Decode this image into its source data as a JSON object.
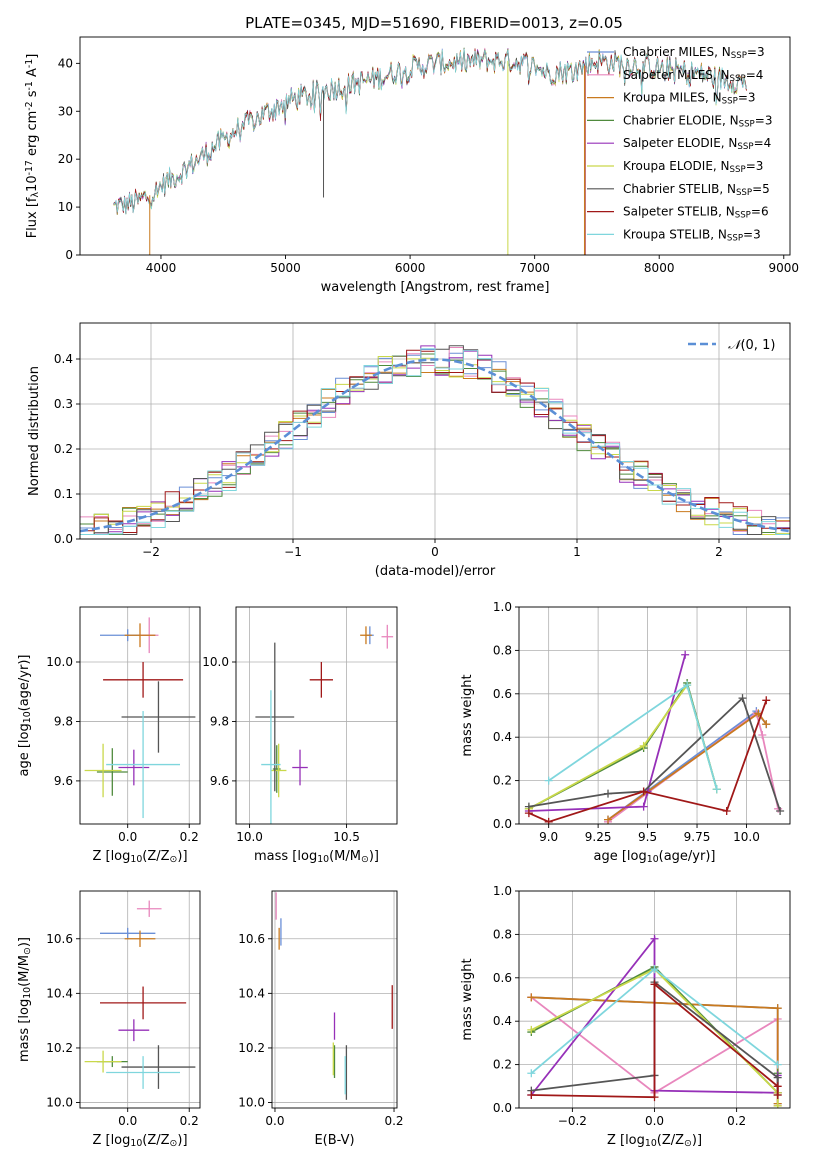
{
  "colors": {
    "chabrier_miles": "#6a8fd6",
    "salpeter_miles": "#e887bd",
    "kroupa_miles": "#c97a1f",
    "chabrier_elodie": "#4f8a3d",
    "salpeter_elodie": "#9630b8",
    "kroupa_elodie": "#c9d84a",
    "chabrier_stelib": "#555555",
    "salpeter_stelib": "#a01818",
    "kroupa_stelib": "#7fd6dd",
    "normal": "#5b8fd6"
  },
  "chart_data": [
    {
      "type": "line",
      "title": "PLATE=0345, MJD=51690, FIBERID=0013, z=0.05",
      "xlabel": "wavelength [Angstrom, rest frame]",
      "ylabel": "Flux [f$_\\lambda$10$^{-17}$ erg cm$^{-2}$ s$^{-1}$ A$^{-1}$]",
      "xlim": [
        3350,
        9050
      ],
      "ylim": [
        0,
        45.5
      ],
      "xticks": [
        4000,
        5000,
        6000,
        7000,
        8000,
        9000
      ],
      "yticks": [
        0,
        10,
        20,
        30,
        40
      ],
      "legend_position": "upper-right",
      "legend": [
        {
          "key": "chabrier_miles",
          "label": "Chabrier MILES, N",
          "sub": "SSP",
          "eq": "=3"
        },
        {
          "key": "salpeter_miles",
          "label": "Salpeter MILES, N",
          "sub": "SSP",
          "eq": "=4"
        },
        {
          "key": "kroupa_miles",
          "label": "Kroupa MILES, N",
          "sub": "SSP",
          "eq": "=3"
        },
        {
          "key": "chabrier_elodie",
          "label": "Chabrier ELODIE, N",
          "sub": "SSP",
          "eq": "=3"
        },
        {
          "key": "salpeter_elodie",
          "label": "Salpeter ELODIE, N",
          "sub": "SSP",
          "eq": "=4"
        },
        {
          "key": "kroupa_elodie",
          "label": "Kroupa ELODIE, N",
          "sub": "SSP",
          "eq": "=3"
        },
        {
          "key": "chabrier_stelib",
          "label": "Chabrier STELIB, N",
          "sub": "SSP",
          "eq": "=5"
        },
        {
          "key": "salpeter_stelib",
          "label": "Salpeter STELIB, N",
          "sub": "SSP",
          "eq": "=6"
        },
        {
          "key": "kroupa_stelib",
          "label": "Kroupa STELIB, N",
          "sub": "SSP",
          "eq": "=3"
        }
      ],
      "continuum": [
        [
          3620,
          10
        ],
        [
          3800,
          11
        ],
        [
          3950,
          13
        ],
        [
          4000,
          14.5
        ],
        [
          4150,
          17
        ],
        [
          4300,
          20
        ],
        [
          4450,
          23
        ],
        [
          4600,
          26
        ],
        [
          4800,
          29
        ],
        [
          5000,
          32
        ],
        [
          5200,
          33.5
        ],
        [
          5400,
          35
        ],
        [
          5600,
          36
        ],
        [
          5800,
          37.5
        ],
        [
          6000,
          39
        ],
        [
          6200,
          40
        ],
        [
          6400,
          40.3
        ],
        [
          6600,
          40.6
        ],
        [
          6800,
          40.5
        ],
        [
          6950,
          40
        ],
        [
          7100,
          38
        ],
        [
          7300,
          38.5
        ],
        [
          7500,
          40.5
        ],
        [
          7700,
          40
        ],
        [
          8000,
          39
        ],
        [
          8300,
          38
        ],
        [
          8450,
          37
        ],
        [
          8700,
          36
        ]
      ],
      "spikes": [
        {
          "series": "kroupa_miles",
          "x": 3910,
          "y": 0
        },
        {
          "series": "chabrier_stelib",
          "x": 5305,
          "y": 12
        },
        {
          "series": "kroupa_elodie",
          "x": 6785,
          "y": 0
        },
        {
          "series": "salpeter_stelib",
          "x": 7405,
          "y": 0
        },
        {
          "series": "kroupa_miles",
          "x": 7400,
          "y": 0
        }
      ]
    },
    {
      "type": "histogram",
      "xlabel": "(data-model)/error",
      "ylabel": "Normed distribution",
      "xlim": [
        -2.5,
        2.5
      ],
      "ylim": [
        0,
        0.48
      ],
      "xticks": [
        -2,
        -1,
        0,
        1,
        2
      ],
      "yticks": [
        0.0,
        0.1,
        0.2,
        0.3,
        0.4
      ],
      "bin_width": 0.1,
      "legend_position": "upper-right",
      "normal_label": "N(0,1)"
    },
    {
      "type": "scatter",
      "xlabel": "Z [log$_{10}$(Z/Z$_\\odot$)]",
      "ylabel": "age  [log$_{10}$(age/yr)]",
      "xlim": [
        -0.155,
        0.235
      ],
      "ylim": [
        9.455,
        10.185
      ],
      "xticks": [
        0.0,
        0.2
      ],
      "yticks": [
        9.6,
        9.8,
        10.0
      ],
      "points": [
        {
          "series": "chabrier_miles",
          "x": 0.0,
          "y": 10.09,
          "xerr": 0.09,
          "yerr": 0.02
        },
        {
          "series": "salpeter_miles",
          "x": 0.07,
          "y": 10.09,
          "xerr": 0.03,
          "yerr": 0.06
        },
        {
          "series": "kroupa_miles",
          "x": 0.04,
          "y": 10.09,
          "xerr": 0.05,
          "yerr": 0.04
        },
        {
          "series": "chabrier_elodie",
          "x": -0.05,
          "y": 9.63,
          "xerr": 0.05,
          "yerr": 0.08
        },
        {
          "series": "salpeter_elodie",
          "x": 0.02,
          "y": 9.645,
          "xerr": 0.05,
          "yerr": 0.06
        },
        {
          "series": "kroupa_elodie",
          "x": -0.08,
          "y": 9.635,
          "xerr": 0.06,
          "yerr": 0.09
        },
        {
          "series": "chabrier_stelib",
          "x": 0.1,
          "y": 9.815,
          "xerr": 0.12,
          "yerr": 0.12
        },
        {
          "series": "salpeter_stelib",
          "x": 0.05,
          "y": 9.94,
          "xerr": 0.13,
          "yerr": 0.06
        },
        {
          "series": "kroupa_stelib",
          "x": 0.05,
          "y": 9.655,
          "xerr": 0.12,
          "yerr": 0.18
        }
      ]
    },
    {
      "type": "scatter",
      "xlabel": "mass [log$_{10}$(M/M$_\\odot$)]",
      "ylabel": "",
      "xlim": [
        9.93,
        10.76
      ],
      "ylim": [
        9.455,
        10.185
      ],
      "xticks": [
        10.0,
        10.5
      ],
      "yticks": [
        9.6,
        9.8,
        10.0
      ],
      "points": [
        {
          "series": "chabrier_miles",
          "x": 10.62,
          "y": 10.09,
          "xerr": 0.02,
          "yerr": 0.03
        },
        {
          "series": "salpeter_miles",
          "x": 10.71,
          "y": 10.085,
          "xerr": 0.03,
          "yerr": 0.04
        },
        {
          "series": "kroupa_miles",
          "x": 10.6,
          "y": 10.09,
          "xerr": 0.03,
          "yerr": 0.03
        },
        {
          "series": "chabrier_elodie",
          "x": 10.14,
          "y": 9.64,
          "xerr": 0.02,
          "yerr": 0.08
        },
        {
          "series": "salpeter_elodie",
          "x": 10.26,
          "y": 9.645,
          "xerr": 0.04,
          "yerr": 0.06
        },
        {
          "series": "kroupa_elodie",
          "x": 10.15,
          "y": 9.635,
          "xerr": 0.04,
          "yerr": 0.09
        },
        {
          "series": "chabrier_stelib",
          "x": 10.13,
          "y": 9.815,
          "xerr": 0.1,
          "yerr": 0.25
        },
        {
          "series": "salpeter_stelib",
          "x": 10.37,
          "y": 9.94,
          "xerr": 0.06,
          "yerr": 0.06
        },
        {
          "series": "kroupa_stelib",
          "x": 10.11,
          "y": 9.655,
          "xerr": 0.05,
          "yerr": 0.25
        }
      ]
    },
    {
      "type": "line",
      "xlabel": "age  [log$_{10}$(age/yr)]",
      "ylabel": "mass weight",
      "xlim": [
        8.85,
        10.22
      ],
      "ylim": [
        0,
        1
      ],
      "xticks": [
        9.0,
        9.25,
        9.5,
        9.75,
        10.0
      ],
      "yticks": [
        0.0,
        0.2,
        0.4,
        0.6,
        0.8,
        1.0
      ],
      "series": [
        {
          "key": "chabrier_miles",
          "points": [
            [
              9.3,
              0.02
            ],
            [
              10.05,
              0.52
            ],
            [
              10.1,
              0.46
            ]
          ]
        },
        {
          "key": "salpeter_miles",
          "points": [
            [
              9.3,
              0.01
            ],
            [
              10.05,
              0.51
            ],
            [
              10.08,
              0.41
            ],
            [
              10.16,
              0.07
            ]
          ]
        },
        {
          "key": "kroupa_miles",
          "points": [
            [
              9.3,
              0.02
            ],
            [
              10.06,
              0.51
            ],
            [
              10.1,
              0.46
            ]
          ]
        },
        {
          "key": "chabrier_elodie",
          "points": [
            [
              8.9,
              0.07
            ],
            [
              9.48,
              0.35
            ],
            [
              9.7,
              0.65
            ],
            [
              9.85,
              0.16
            ]
          ]
        },
        {
          "key": "salpeter_elodie",
          "points": [
            [
              8.9,
              0.06
            ],
            [
              9.48,
              0.08
            ],
            [
              9.5,
              0.15
            ],
            [
              9.69,
              0.78
            ]
          ]
        },
        {
          "key": "kroupa_elodie",
          "points": [
            [
              8.9,
              0.07
            ],
            [
              9.48,
              0.36
            ],
            [
              9.7,
              0.64
            ],
            [
              9.85,
              0.16
            ]
          ]
        },
        {
          "key": "chabrier_stelib",
          "points": [
            [
              8.9,
              0.08
            ],
            [
              9.3,
              0.14
            ],
            [
              9.48,
              0.15
            ],
            [
              9.98,
              0.58
            ],
            [
              10.17,
              0.06
            ]
          ]
        },
        {
          "key": "salpeter_stelib",
          "points": [
            [
              8.9,
              0.05
            ],
            [
              9.0,
              0.01
            ],
            [
              9.48,
              0.15
            ],
            [
              9.9,
              0.06
            ],
            [
              10.1,
              0.57
            ]
          ]
        },
        {
          "key": "kroupa_stelib",
          "points": [
            [
              9.0,
              0.2
            ],
            [
              9.7,
              0.64
            ],
            [
              9.85,
              0.16
            ]
          ]
        }
      ]
    },
    {
      "type": "scatter",
      "xlabel": "Z [log$_{10}$(Z/Z$_\\odot$)]",
      "ylabel": "mass [log$_{10}$(M/M$_\\odot$)]",
      "xlim": [
        -0.155,
        0.235
      ],
      "ylim": [
        9.98,
        10.775
      ],
      "xticks": [
        0.0,
        0.2
      ],
      "yticks": [
        10.0,
        10.2,
        10.4,
        10.6
      ],
      "points": [
        {
          "series": "chabrier_miles",
          "x": 0.0,
          "y": 10.62,
          "xerr": 0.09,
          "yerr": 0.02
        },
        {
          "series": "salpeter_miles",
          "x": 0.07,
          "y": 10.71,
          "xerr": 0.04,
          "yerr": 0.03
        },
        {
          "series": "kroupa_miles",
          "x": 0.04,
          "y": 10.6,
          "xerr": 0.05,
          "yerr": 0.03
        },
        {
          "series": "chabrier_elodie",
          "x": -0.05,
          "y": 10.15,
          "xerr": 0.05,
          "yerr": 0.02
        },
        {
          "series": "salpeter_elodie",
          "x": 0.02,
          "y": 10.265,
          "xerr": 0.05,
          "yerr": 0.04
        },
        {
          "series": "kroupa_elodie",
          "x": -0.08,
          "y": 10.15,
          "xerr": 0.06,
          "yerr": 0.04
        },
        {
          "series": "chabrier_stelib",
          "x": 0.1,
          "y": 10.13,
          "xerr": 0.12,
          "yerr": 0.08
        },
        {
          "series": "salpeter_stelib",
          "x": 0.05,
          "y": 10.365,
          "xerr": 0.14,
          "yerr": 0.06
        },
        {
          "series": "kroupa_stelib",
          "x": 0.05,
          "y": 10.11,
          "xerr": 0.12,
          "yerr": 0.06
        }
      ]
    },
    {
      "type": "scatter",
      "xlabel": "E(B-V)",
      "ylabel": "",
      "xlim": [
        -0.005,
        0.205
      ],
      "ylim": [
        9.98,
        10.775
      ],
      "xticks": [
        0.0,
        0.2
      ],
      "yticks": [
        10.0,
        10.2,
        10.4,
        10.6
      ],
      "points": [
        {
          "series": "chabrier_miles",
          "x": 0.01,
          "y": 10.625,
          "xerr": 0,
          "yerr": 0.05
        },
        {
          "series": "salpeter_miles",
          "x": 0.002,
          "y": 10.72,
          "xerr": 0,
          "yerr": 0.05
        },
        {
          "series": "kroupa_miles",
          "x": 0.007,
          "y": 10.6,
          "xerr": 0,
          "yerr": 0.04
        },
        {
          "series": "chabrier_elodie",
          "x": 0.1,
          "y": 10.15,
          "xerr": 0,
          "yerr": 0.06
        },
        {
          "series": "salpeter_elodie",
          "x": 0.1,
          "y": 10.28,
          "xerr": 0,
          "yerr": 0.05
        },
        {
          "series": "kroupa_elodie",
          "x": 0.098,
          "y": 10.16,
          "xerr": 0,
          "yerr": 0.06
        },
        {
          "series": "chabrier_stelib",
          "x": 0.12,
          "y": 10.11,
          "xerr": 0,
          "yerr": 0.1
        },
        {
          "series": "salpeter_stelib",
          "x": 0.197,
          "y": 10.35,
          "xerr": 0,
          "yerr": 0.08
        },
        {
          "series": "kroupa_stelib",
          "x": 0.118,
          "y": 10.1,
          "xerr": 0,
          "yerr": 0.07
        }
      ]
    },
    {
      "type": "line",
      "xlabel": "Z [log$_{10}$(Z/Z$_\\odot$)]",
      "ylabel": "mass weight",
      "xlim": [
        -0.33,
        0.33
      ],
      "ylim": [
        0,
        1
      ],
      "xticks": [
        -0.2,
        0.0,
        0.2
      ],
      "yticks": [
        0.0,
        0.2,
        0.4,
        0.6,
        0.8,
        1.0
      ],
      "series": [
        {
          "key": "chabrier_miles",
          "points": [
            [
              -0.3,
              0.51
            ],
            [
              0.3,
              0.46
            ],
            [
              0.3,
              0.02
            ]
          ]
        },
        {
          "key": "salpeter_miles",
          "points": [
            [
              -0.3,
              0.51
            ],
            [
              0.0,
              0.07
            ],
            [
              0.3,
              0.41
            ],
            [
              0.3,
              0.01
            ]
          ]
        },
        {
          "key": "kroupa_miles",
          "points": [
            [
              -0.3,
              0.51
            ],
            [
              0.3,
              0.46
            ],
            [
              0.3,
              0.02
            ]
          ]
        },
        {
          "key": "chabrier_elodie",
          "points": [
            [
              -0.3,
              0.35
            ],
            [
              0.0,
              0.65
            ],
            [
              0.3,
              0.07
            ],
            [
              0.3,
              0.16
            ]
          ]
        },
        {
          "key": "salpeter_elodie",
          "points": [
            [
              -0.3,
              0.06
            ],
            [
              0.0,
              0.78
            ],
            [
              0.0,
              0.08
            ],
            [
              0.3,
              0.07
            ],
            [
              0.3,
              0.15
            ]
          ]
        },
        {
          "key": "kroupa_elodie",
          "points": [
            [
              -0.3,
              0.36
            ],
            [
              0.0,
              0.64
            ],
            [
              0.3,
              0.07
            ],
            [
              0.3,
              0.01
            ]
          ]
        },
        {
          "key": "chabrier_stelib",
          "points": [
            [
              -0.3,
              0.08
            ],
            [
              0.0,
              0.15
            ],
            [
              0.0,
              0.58
            ],
            [
              0.3,
              0.14
            ],
            [
              0.3,
              0.06
            ]
          ]
        },
        {
          "key": "salpeter_stelib",
          "points": [
            [
              -0.3,
              0.06
            ],
            [
              0.0,
              0.05
            ],
            [
              0.0,
              0.57
            ],
            [
              0.3,
              0.1
            ],
            [
              0.3,
              0.06
            ]
          ]
        },
        {
          "key": "kroupa_stelib",
          "points": [
            [
              -0.3,
              0.16
            ],
            [
              0.0,
              0.64
            ],
            [
              0.3,
              0.2
            ]
          ]
        }
      ]
    }
  ]
}
